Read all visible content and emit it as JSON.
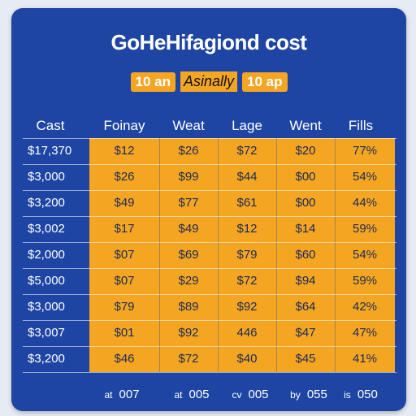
{
  "header": {
    "title": "GoHeHifagiond cost",
    "subtitle_left": "10 an",
    "subtitle_mid": "Asinally",
    "subtitle_right": "10 ap"
  },
  "table": {
    "columns": [
      "Cast",
      "Foinay",
      "Weat",
      "Lage",
      "Went",
      "Fills"
    ],
    "rows": [
      [
        "$17,370",
        "$12",
        "$26",
        "$72",
        "$20",
        "77%"
      ],
      [
        "$3,000",
        "$26",
        "$99",
        "$44",
        "$00",
        "54%"
      ],
      [
        "$3,200",
        "$49",
        "$77",
        "$61",
        "$00",
        "44%"
      ],
      [
        "$3,002",
        "$17",
        "$49",
        "$12",
        "$14",
        "59%"
      ],
      [
        "$2,000",
        "$07",
        "$69",
        "$79",
        "$60",
        "54%"
      ],
      [
        "$5,000",
        "$07",
        "$29",
        "$72",
        "$94",
        "59%"
      ],
      [
        "$3,000",
        "$79",
        "$89",
        "$92",
        "$64",
        "42%"
      ],
      [
        "$3,007",
        "$01",
        "$92",
        "446",
        "$47",
        "47%"
      ],
      [
        "$3,200",
        "$46",
        "$72",
        "$40",
        "$45",
        "41%"
      ]
    ],
    "footer": [
      {
        "prefix": "at",
        "value": "007"
      },
      {
        "prefix": "at",
        "value": "005"
      },
      {
        "prefix": "cv",
        "value": "005"
      },
      {
        "prefix": "by",
        "value": "055"
      },
      {
        "prefix": "is",
        "value": "050"
      }
    ]
  },
  "colors": {
    "background": "#1e45a3",
    "accent": "#f4a623",
    "text_light": "#ffffff",
    "text_dark": "#1b2a55"
  }
}
